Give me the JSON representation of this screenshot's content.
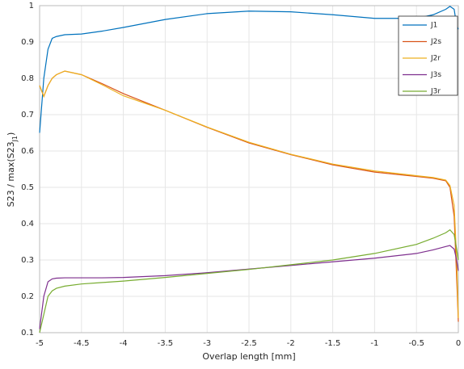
{
  "chart_data": {
    "type": "line",
    "xlabel": "Overlap length [mm]",
    "ylabel": [
      "S23 / max(S23",
      "J1",
      ")"
    ],
    "x": [
      -5,
      -4.95,
      -4.9,
      -4.85,
      -4.8,
      -4.7,
      -4.5,
      -4.25,
      -4,
      -3.5,
      -3,
      -2.5,
      -2,
      -1.5,
      -1,
      -0.5,
      -0.3,
      -0.15,
      -0.1,
      -0.05,
      -0.02,
      0
    ],
    "series": [
      {
        "name": "J1",
        "color": "#0072bd",
        "values": [
          0.65,
          0.8,
          0.88,
          0.91,
          0.915,
          0.92,
          0.922,
          0.93,
          0.94,
          0.962,
          0.978,
          0.985,
          0.983,
          0.975,
          0.965,
          0.965,
          0.975,
          0.99,
          0.998,
          0.99,
          0.945,
          0.935
        ]
      },
      {
        "name": "J2s",
        "color": "#d95319",
        "values": [
          0.78,
          0.75,
          0.78,
          0.8,
          0.81,
          0.82,
          0.81,
          0.785,
          0.758,
          0.712,
          0.665,
          0.622,
          0.59,
          0.562,
          0.542,
          0.53,
          0.525,
          0.518,
          0.5,
          0.42,
          0.25,
          0.13
        ]
      },
      {
        "name": "J2r",
        "color": "#edb120",
        "values": [
          0.78,
          0.75,
          0.78,
          0.8,
          0.81,
          0.82,
          0.81,
          0.782,
          0.752,
          0.712,
          0.666,
          0.624,
          0.591,
          0.564,
          0.545,
          0.532,
          0.527,
          0.52,
          0.505,
          0.45,
          0.3,
          0.14
        ]
      },
      {
        "name": "J3s",
        "color": "#7e2f8e",
        "values": [
          0.11,
          0.2,
          0.24,
          0.248,
          0.25,
          0.251,
          0.251,
          0.251,
          0.252,
          0.257,
          0.265,
          0.275,
          0.285,
          0.295,
          0.305,
          0.318,
          0.328,
          0.337,
          0.34,
          0.33,
          0.3,
          0.27
        ]
      },
      {
        "name": "J3r",
        "color": "#77ac30",
        "values": [
          0.1,
          0.15,
          0.2,
          0.215,
          0.222,
          0.228,
          0.234,
          0.238,
          0.242,
          0.252,
          0.263,
          0.274,
          0.287,
          0.3,
          0.318,
          0.343,
          0.36,
          0.375,
          0.383,
          0.37,
          0.33,
          0.3
        ]
      }
    ],
    "xlim": [
      -5,
      0
    ],
    "xticks": [
      -5,
      -4.5,
      -4,
      -3.5,
      -3,
      -2.5,
      -2,
      -1.5,
      -1,
      -0.5,
      0
    ],
    "ylim": [
      0.1,
      1
    ],
    "yticks": [
      0.1,
      0.2,
      0.3,
      0.4,
      0.5,
      0.6,
      0.7,
      0.8,
      0.9,
      1
    ],
    "grid": true,
    "legend": "upper right"
  }
}
